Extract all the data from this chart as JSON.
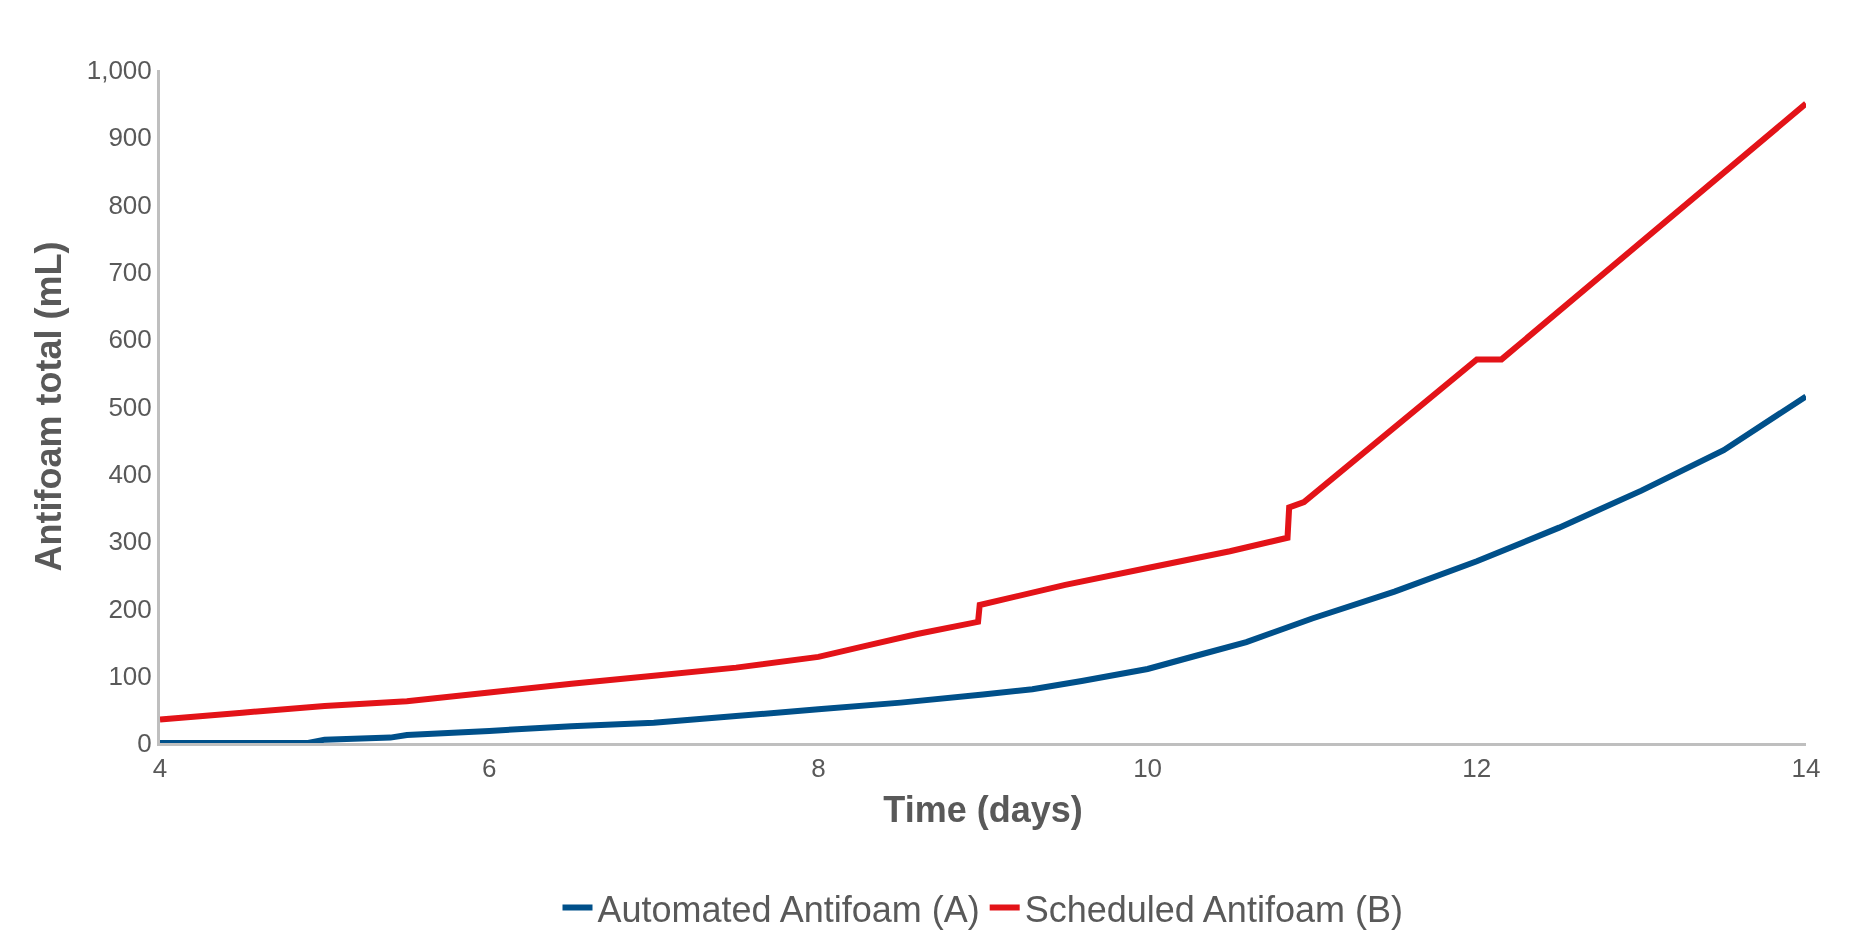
{
  "chart_data": {
    "type": "line",
    "xlabel": "Time (days)",
    "ylabel": "Antifoam total (mL)",
    "xlim": [
      4,
      14
    ],
    "xticks": [
      4,
      6,
      8,
      10,
      12,
      14
    ],
    "ylim": [
      0,
      1000
    ],
    "yticks": [
      0,
      100,
      200,
      300,
      400,
      500,
      600,
      700,
      800,
      900,
      {
        "value": 1000,
        "label": "1,000"
      }
    ],
    "legend": "bottom",
    "marker": "none",
    "line_style": "solid",
    "series": [
      {
        "name": "Automated Antifoam (A)",
        "color": "#00508a",
        "x": [
          4,
          4.9,
          5,
          5.4,
          5.5,
          6,
          6.5,
          7,
          7.5,
          8,
          8.5,
          9,
          9.3,
          9.6,
          10,
          10.3,
          10.6,
          11,
          11.5,
          12,
          12.5,
          13,
          13.5,
          14
        ],
        "values": [
          0,
          0,
          5,
          8,
          12,
          18,
          25,
          30,
          40,
          50,
          60,
          72,
          80,
          92,
          110,
          130,
          150,
          185,
          225,
          270,
          320,
          375,
          435,
          515
        ]
      },
      {
        "name": "Scheduled Antifoam (B)",
        "color": "#e31318",
        "x": [
          4,
          4.5,
          5,
          5.5,
          6,
          6.5,
          7,
          7.5,
          8,
          8.3,
          8.6,
          8.97,
          8.98,
          9.5,
          10,
          10.5,
          10.85,
          10.86,
          10.95,
          12,
          12.15,
          14
        ],
        "values": [
          35,
          45,
          55,
          62,
          75,
          88,
          100,
          112,
          128,
          145,
          162,
          180,
          205,
          235,
          260,
          285,
          305,
          350,
          358,
          570,
          570,
          950
        ]
      }
    ]
  }
}
